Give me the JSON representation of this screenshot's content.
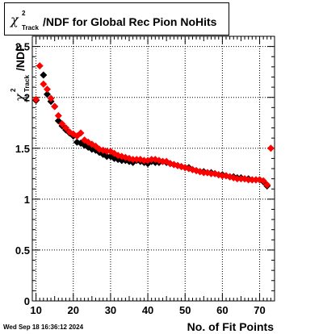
{
  "title": {
    "symbol": "χ",
    "superscript": "2",
    "subscript": "Track",
    "text": "/NDF for Global Rec Pion NoHits"
  },
  "timestamp": "Wed Sep 18 16:36:12 2024",
  "chart_data": {
    "type": "scatter",
    "title": "χ²Track/NDF for Global Rec Pion NoHits",
    "xlabel": "No. of Fit Points",
    "ylabel": "χ²Track/NDF",
    "xlim": [
      9,
      74
    ],
    "ylim": [
      0,
      2.6
    ],
    "grid": true,
    "x_ticks": [
      10,
      20,
      30,
      40,
      50,
      60,
      70
    ],
    "y_ticks": [
      0,
      0.5,
      1,
      1.5,
      2,
      2.5
    ],
    "x_tick_labels": [
      "10",
      "20",
      "30",
      "40",
      "50",
      "60",
      "70"
    ],
    "y_tick_labels": [
      "0",
      "0.5",
      "1",
      "1.5",
      "2",
      "2.5"
    ],
    "series": [
      {
        "color": "#000000",
        "x": [
          10,
          12,
          13,
          14,
          15,
          16,
          17,
          18,
          19,
          20,
          21,
          22,
          23,
          24,
          25,
          26,
          27,
          28,
          29,
          30,
          31,
          32,
          33,
          34,
          35,
          36,
          37,
          38,
          39,
          40,
          41,
          42,
          43,
          44,
          45,
          46,
          47,
          48,
          49,
          50,
          51,
          52,
          53,
          54,
          55,
          56,
          57,
          58,
          59,
          60,
          61,
          62,
          63,
          64,
          65,
          66,
          67,
          68,
          69,
          70,
          71,
          72
        ],
        "y": [
          1.97,
          2.22,
          2.03,
          1.96,
          1.91,
          1.77,
          1.72,
          1.68,
          1.65,
          1.62,
          1.56,
          1.55,
          1.53,
          1.51,
          1.49,
          1.48,
          1.46,
          1.44,
          1.42,
          1.42,
          1.4,
          1.39,
          1.38,
          1.38,
          1.37,
          1.36,
          1.38,
          1.37,
          1.36,
          1.35,
          1.37,
          1.36,
          1.36,
          1.37,
          1.36,
          1.35,
          1.34,
          1.33,
          1.32,
          1.31,
          1.31,
          1.29,
          1.28,
          1.27,
          1.27,
          1.26,
          1.26,
          1.25,
          1.24,
          1.24,
          1.23,
          1.22,
          1.22,
          1.21,
          1.21,
          1.2,
          1.2,
          1.19,
          1.19,
          1.19,
          1.17,
          1.13
        ]
      },
      {
        "color": "#ff0000",
        "x": [
          10,
          11,
          12,
          13,
          14,
          15,
          16,
          17,
          18,
          19,
          20,
          21,
          22,
          23,
          24,
          25,
          26,
          27,
          28,
          29,
          30,
          31,
          32,
          33,
          34,
          35,
          36,
          37,
          38,
          39,
          40,
          41,
          42,
          43,
          44,
          45,
          46,
          47,
          48,
          49,
          50,
          51,
          52,
          53,
          54,
          55,
          56,
          57,
          58,
          59,
          60,
          61,
          62,
          63,
          64,
          65,
          66,
          67,
          68,
          69,
          70,
          71,
          72,
          73
        ],
        "y": [
          1.98,
          2.31,
          2.13,
          2.08,
          1.99,
          1.91,
          1.82,
          1.74,
          1.7,
          1.66,
          1.64,
          1.62,
          1.65,
          1.58,
          1.56,
          1.54,
          1.52,
          1.49,
          1.48,
          1.47,
          1.47,
          1.45,
          1.43,
          1.42,
          1.41,
          1.4,
          1.39,
          1.39,
          1.39,
          1.38,
          1.38,
          1.39,
          1.39,
          1.38,
          1.37,
          1.37,
          1.35,
          1.34,
          1.33,
          1.32,
          1.31,
          1.3,
          1.29,
          1.28,
          1.27,
          1.26,
          1.26,
          1.25,
          1.25,
          1.24,
          1.23,
          1.23,
          1.22,
          1.21,
          1.2,
          1.2,
          1.2,
          1.19,
          1.19,
          1.19,
          1.19,
          1.18,
          1.14,
          1.5
        ]
      }
    ]
  }
}
